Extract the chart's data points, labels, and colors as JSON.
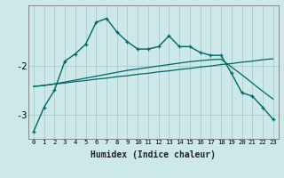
{
  "xlabel": "Humidex (Indice chaleur)",
  "bg_color": "#cce8e8",
  "grid_color": "#aacccc",
  "line_color": "#006666",
  "x_data": [
    0,
    1,
    2,
    3,
    4,
    5,
    6,
    7,
    8,
    9,
    10,
    11,
    12,
    13,
    14,
    15,
    16,
    17,
    18,
    19,
    20,
    21,
    22,
    23
  ],
  "y_main": [
    -3.35,
    -2.85,
    -2.5,
    -1.9,
    -1.75,
    -1.55,
    -1.1,
    -1.02,
    -1.3,
    -1.5,
    -1.65,
    -1.65,
    -1.6,
    -1.38,
    -1.6,
    -1.6,
    -1.72,
    -1.78,
    -1.78,
    -2.15,
    -2.55,
    -2.62,
    -2.85,
    -3.1
  ],
  "y_trend1": [
    -2.42,
    -2.4,
    -2.37,
    -2.35,
    -2.32,
    -2.3,
    -2.27,
    -2.25,
    -2.22,
    -2.2,
    -2.17,
    -2.15,
    -2.12,
    -2.1,
    -2.07,
    -2.05,
    -2.02,
    -2.0,
    -1.97,
    -1.95,
    -1.92,
    -1.9,
    -1.87,
    -1.85
  ],
  "y_trend2": [
    -2.42,
    -2.4,
    -2.37,
    -2.33,
    -2.29,
    -2.25,
    -2.21,
    -2.17,
    -2.13,
    -2.09,
    -2.06,
    -2.03,
    -2.0,
    -1.97,
    -1.94,
    -1.91,
    -1.89,
    -1.87,
    -1.86,
    -2.02,
    -2.18,
    -2.35,
    -2.52,
    -2.68
  ],
  "ylim": [
    -3.5,
    -0.75
  ],
  "yticks": [
    -3.0,
    -2.0
  ],
  "xticks": [
    0,
    1,
    2,
    3,
    4,
    5,
    6,
    7,
    8,
    9,
    10,
    11,
    12,
    13,
    14,
    15,
    16,
    17,
    18,
    19,
    20,
    21,
    22,
    23
  ],
  "xticklabels": [
    "0",
    "1",
    "2",
    "3",
    "4",
    "5",
    "6",
    "7",
    "8",
    "9",
    "10",
    "11",
    "12",
    "13",
    "14",
    "15",
    "16",
    "17",
    "18",
    "19",
    "20",
    "21",
    "22",
    "23"
  ]
}
